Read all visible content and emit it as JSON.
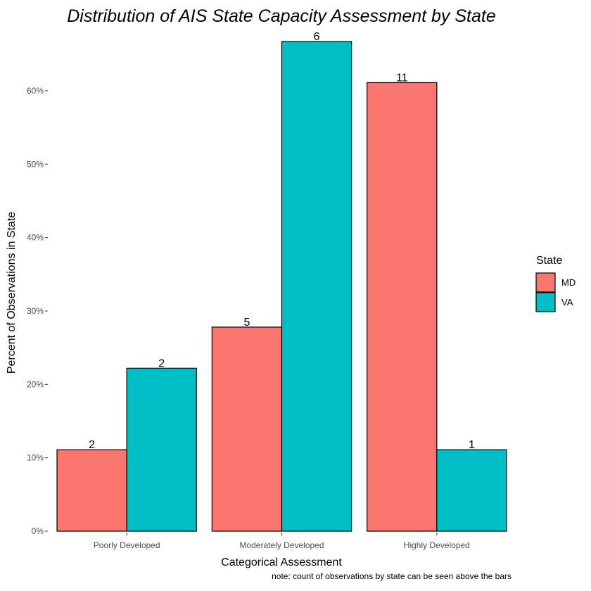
{
  "chart_data": {
    "type": "bar",
    "title": "Distribution of AIS State Capacity Assessment by State",
    "xlabel": "Categorical Assessment",
    "ylabel": "Percent of Observations in State",
    "categories": [
      "Poorly Developed",
      "Moderately Developed",
      "Highly Developed"
    ],
    "series": [
      {
        "name": "MD",
        "color": "#F8766D",
        "values": [
          11.1,
          27.8,
          61.1
        ],
        "labels": [
          "2",
          "5",
          "11"
        ]
      },
      {
        "name": "VA",
        "color": "#00BFC4",
        "values": [
          22.2,
          66.7,
          11.1
        ],
        "labels": [
          "2",
          "6",
          "1"
        ]
      }
    ],
    "ylim": [
      0,
      66.7
    ],
    "yticks": [
      0,
      10,
      20,
      30,
      40,
      50,
      60
    ],
    "ytick_labels": [
      "0%",
      "10%",
      "20%",
      "30%",
      "40%",
      "50%",
      "60%"
    ],
    "grid": false,
    "legend": {
      "title": "State",
      "position": "right"
    },
    "note": "note: count of observations by state can be seen above the bars"
  }
}
